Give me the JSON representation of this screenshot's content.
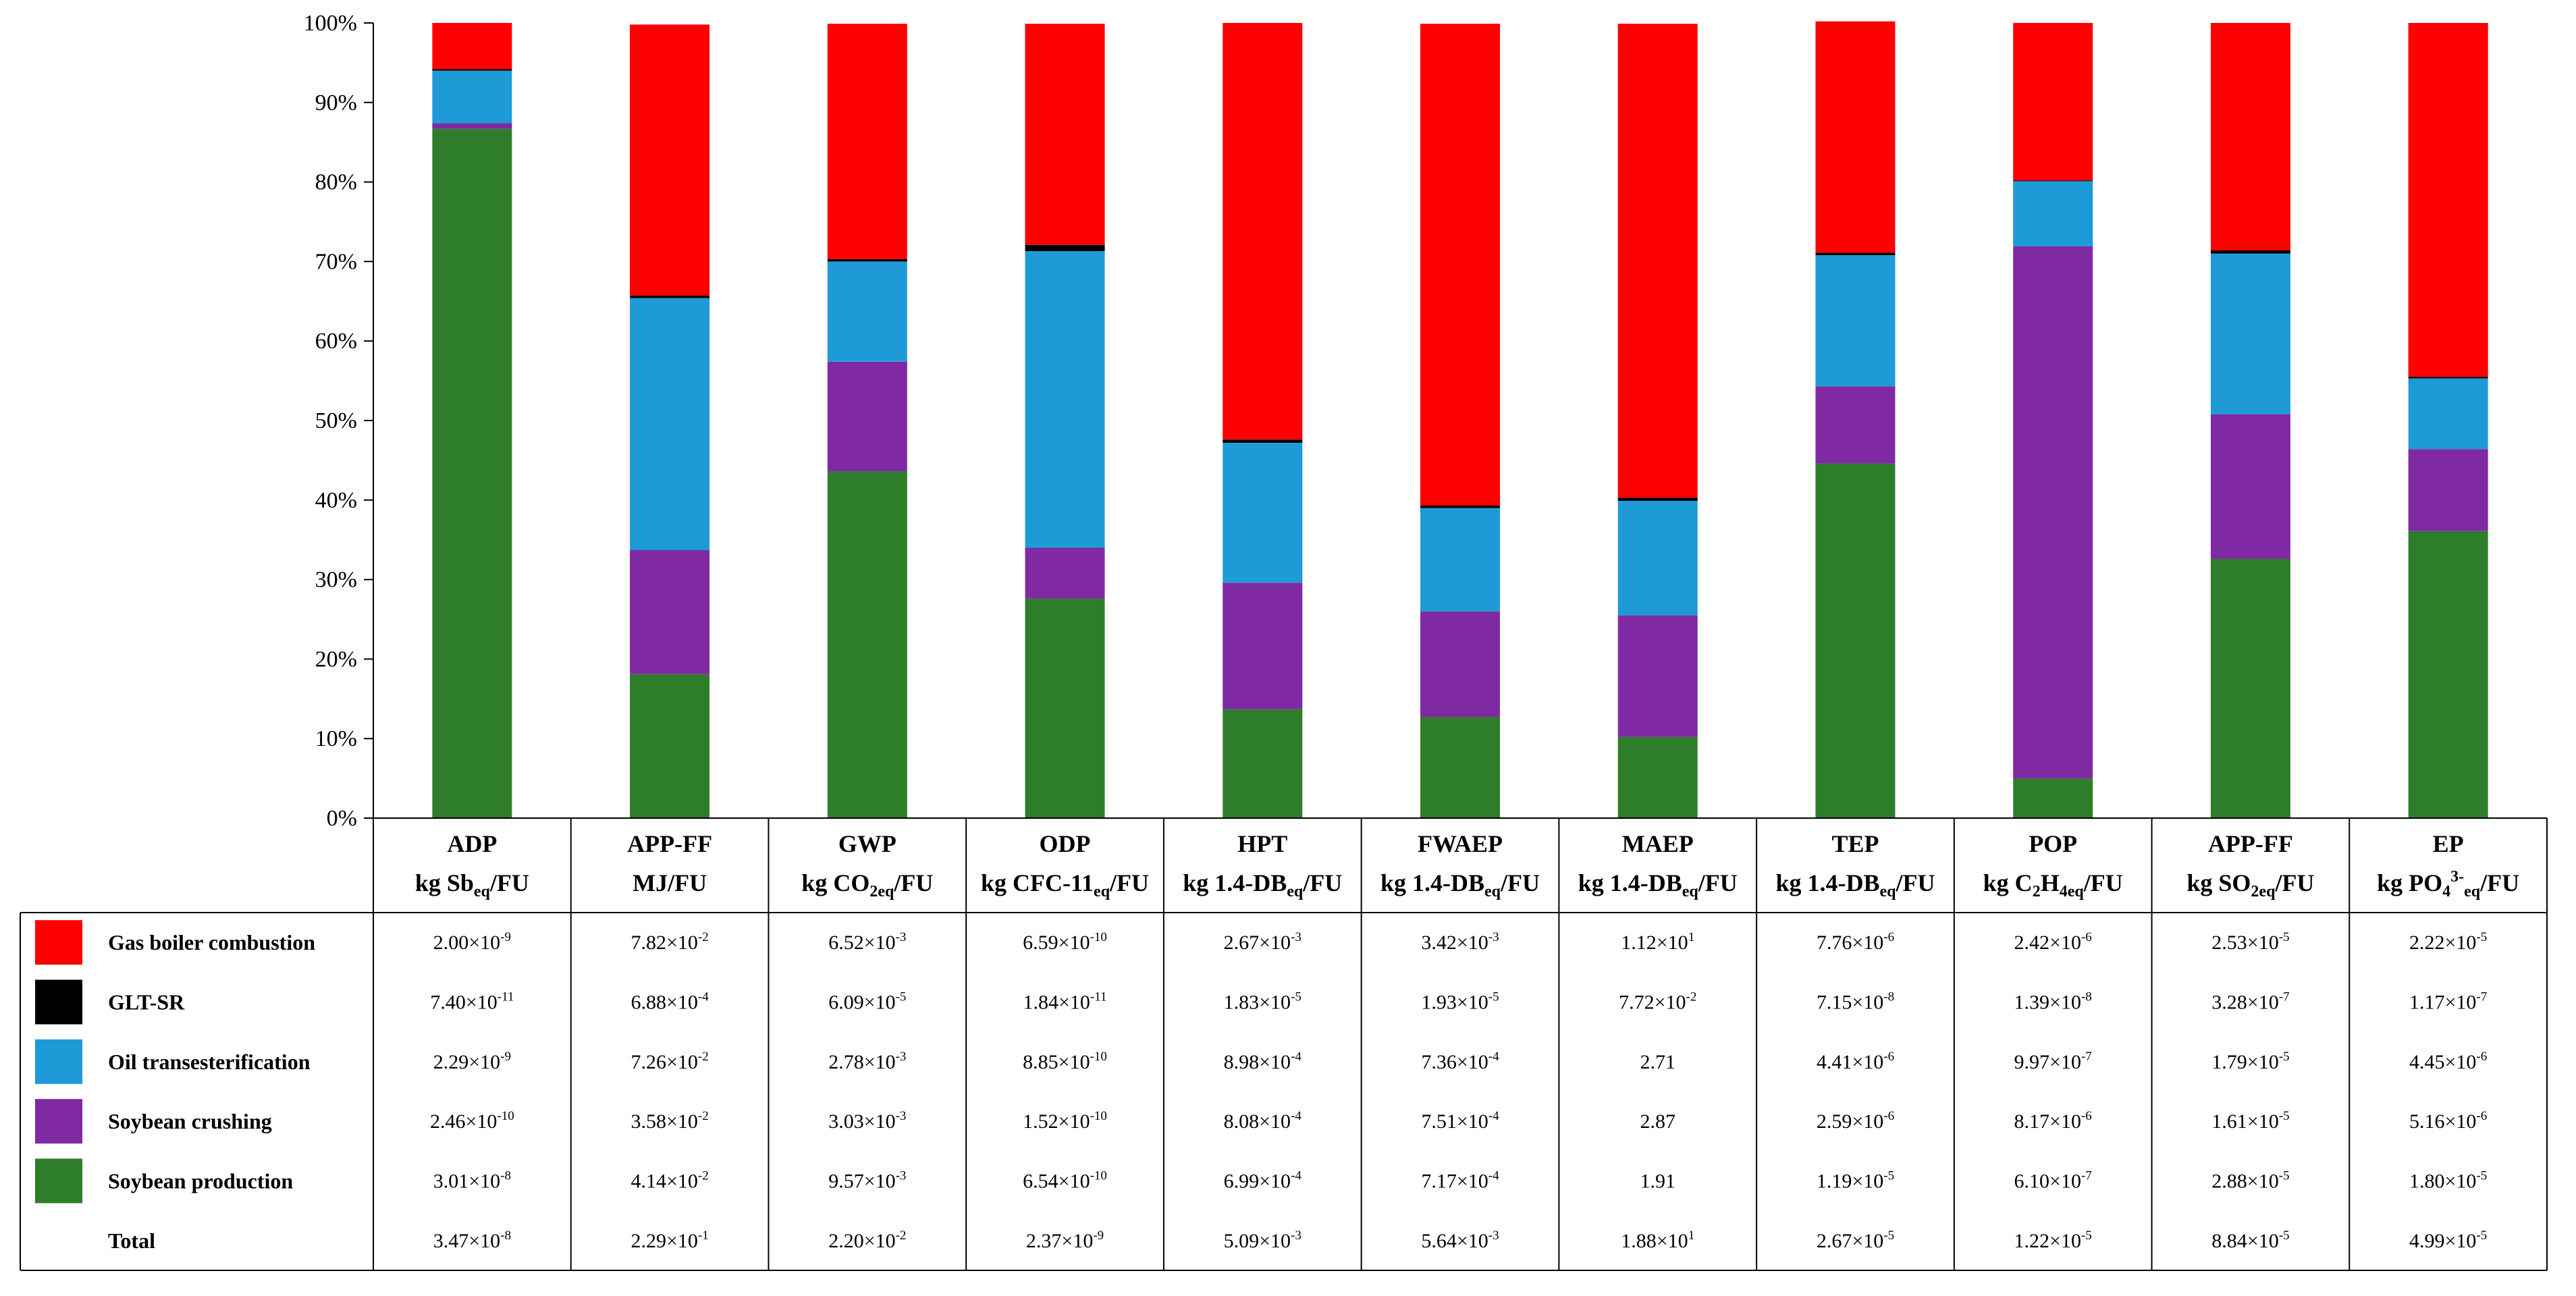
{
  "chart_data": {
    "type": "bar",
    "stacked": true,
    "percent_stacked": true,
    "y_ticks": [
      "0%",
      "10%",
      "20%",
      "30%",
      "40%",
      "50%",
      "60%",
      "70%",
      "80%",
      "90%",
      "100%"
    ],
    "ylim": [
      0,
      100
    ],
    "categories": [
      {
        "name": "ADP",
        "unit": [
          {
            "t": "kg Sb"
          },
          {
            "t": "eq",
            "sub": true
          },
          {
            "t": "/FU"
          }
        ]
      },
      {
        "name": "APP-FF",
        "unit": [
          {
            "t": "MJ/FU"
          }
        ]
      },
      {
        "name": "GWP",
        "unit": [
          {
            "t": "kg CO"
          },
          {
            "t": "2eq",
            "sub": true
          },
          {
            "t": "/FU"
          }
        ]
      },
      {
        "name": "ODP",
        "unit": [
          {
            "t": "kg CFC-11"
          },
          {
            "t": "eq",
            "sub": true
          },
          {
            "t": "/FU"
          }
        ]
      },
      {
        "name": "HPT",
        "unit": [
          {
            "t": "kg 1.4-DB"
          },
          {
            "t": "eq",
            "sub": true
          },
          {
            "t": "/FU"
          }
        ]
      },
      {
        "name": "FWAEP",
        "unit": [
          {
            "t": "kg 1.4-DB"
          },
          {
            "t": "eq",
            "sub": true
          },
          {
            "t": "/FU"
          }
        ]
      },
      {
        "name": "MAEP",
        "unit": [
          {
            "t": "kg 1.4-DB"
          },
          {
            "t": "eq",
            "sub": true
          },
          {
            "t": "/FU"
          }
        ]
      },
      {
        "name": "TEP",
        "unit": [
          {
            "t": "kg 1.4-DB"
          },
          {
            "t": "eq",
            "sub": true
          },
          {
            "t": "/FU"
          }
        ]
      },
      {
        "name": "POP",
        "unit": [
          {
            "t": "kg C"
          },
          {
            "t": "2",
            "sub": true
          },
          {
            "t": "H"
          },
          {
            "t": "4eq",
            "sub": true
          },
          {
            "t": "/FU"
          }
        ]
      },
      {
        "name": "APP-FF",
        "unit": [
          {
            "t": "kg SO"
          },
          {
            "t": "2eq",
            "sub": true
          },
          {
            "t": "/FU"
          }
        ]
      },
      {
        "name": "EP",
        "unit": [
          {
            "t": "kg PO"
          },
          {
            "t": "4",
            "sub": true
          },
          {
            "t": "3-",
            "sup": true
          },
          {
            "t": "eq",
            "sub": true
          },
          {
            "t": "/FU"
          }
        ]
      }
    ],
    "series": [
      {
        "name": "Gas boiler combustion",
        "color": "#ff0000",
        "values": [
          5.8,
          34.1,
          29.6,
          27.8,
          52.4,
          60.6,
          59.6,
          29.1,
          19.8,
          28.6,
          44.5
        ],
        "table": [
          "2.00×10^-9",
          "7.82×10^-2",
          "6.52×10^-3",
          "6.59×10^-10",
          "2.67×10^-3",
          "3.42×10^-3",
          "1.12×10^1",
          "7.76×10^-6",
          "2.42×10^-6",
          "2.53×10^-5",
          "2.22×10^-5"
        ]
      },
      {
        "name": "GLT-SR",
        "color": "#000000",
        "values": [
          0.2,
          0.3,
          0.3,
          0.8,
          0.4,
          0.3,
          0.4,
          0.3,
          0.1,
          0.4,
          0.2
        ],
        "table": [
          "7.40×10^-11",
          "6.88×10^-4",
          "6.09×10^-5",
          "1.84×10^-11",
          "1.83×10^-5",
          "1.93×10^-5",
          "7.72×10^-2",
          "7.15×10^-8",
          "1.39×10^-8",
          "3.28×10^-7",
          "1.17×10^-7"
        ]
      },
      {
        "name": "Oil transesterification",
        "color": "#1e9bd7",
        "values": [
          6.6,
          31.7,
          12.6,
          37.3,
          17.6,
          13.0,
          14.4,
          16.5,
          8.2,
          20.2,
          8.9
        ],
        "table": [
          "2.29×10^-9",
          "7.26×10^-2",
          "2.78×10^-3",
          "8.85×10^-10",
          "8.98×10^-4",
          "7.36×10^-4",
          "2.71",
          "4.41×10^-6",
          "9.97×10^-7",
          "1.79×10^-5",
          "4.45×10^-6"
        ]
      },
      {
        "name": "Soybean crushing",
        "color": "#7f2aa3",
        "values": [
          0.7,
          15.6,
          13.8,
          6.4,
          15.9,
          13.3,
          15.3,
          9.7,
          66.9,
          18.2,
          10.3
        ],
        "table": [
          "2.46×10^-10",
          "3.58×10^-2",
          "3.03×10^-3",
          "1.52×10^-10",
          "8.08×10^-4",
          "7.51×10^-4",
          "2.87",
          "2.59×10^-6",
          "8.17×10^-6",
          "1.61×10^-5",
          "5.16×10^-6"
        ]
      },
      {
        "name": "Soybean production",
        "color": "#2e7d2a",
        "values": [
          86.7,
          18.1,
          43.6,
          27.6,
          13.7,
          12.7,
          10.2,
          44.6,
          5.0,
          32.6,
          36.1
        ],
        "table": [
          "3.01×10^-8",
          "4.14×10^-2",
          "9.57×10^-3",
          "6.54×10^-10",
          "6.99×10^-4",
          "7.17×10^-4",
          "1.91",
          "1.19×10^-5",
          "6.10×10^-7",
          "2.88×10^-5",
          "1.80×10^-5"
        ]
      },
      {
        "name": "Total",
        "color": null,
        "values": null,
        "table": [
          "3.47×10^-8",
          "2.29×10^-1",
          "2.20×10^-2",
          "2.37×10^-9",
          "5.09×10^-3",
          "5.64×10^-3",
          "1.88×10^1",
          "2.67×10^-5",
          "1.22×10^-5",
          "8.84×10^-5",
          "4.99×10^-5"
        ]
      }
    ],
    "title": "",
    "xlabel": "",
    "ylabel": "",
    "legend": "table-left"
  }
}
